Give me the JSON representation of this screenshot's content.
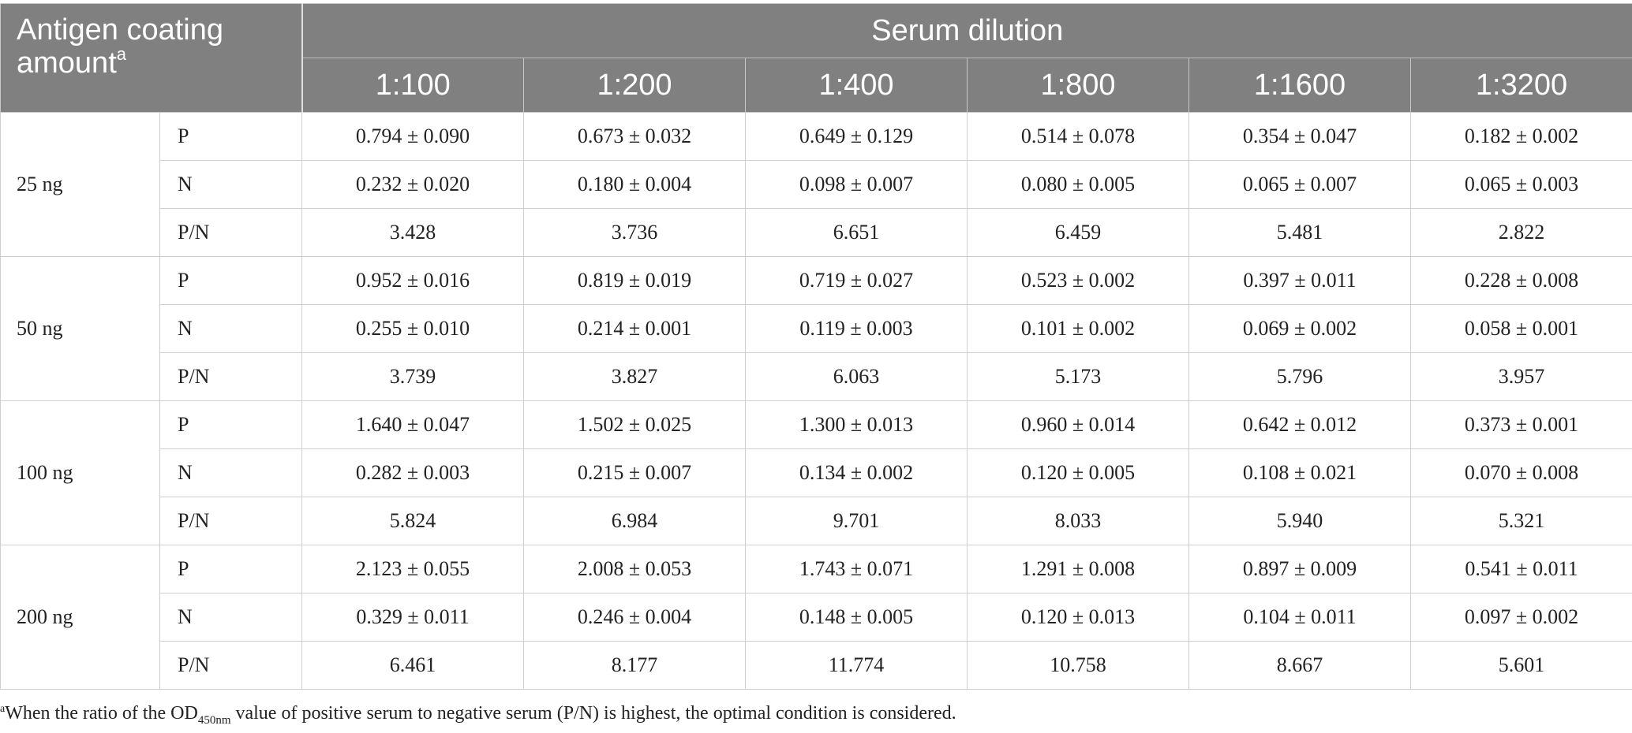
{
  "header": {
    "corner_label": "Antigen coating amount",
    "corner_marker": "a",
    "span_label": "Serum dilution",
    "dilutions": [
      "1:100",
      "1:200",
      "1:400",
      "1:800",
      "1:1600",
      "1:3200"
    ]
  },
  "groups": [
    {
      "amount": "25 ng",
      "rows": [
        {
          "metric": "P",
          "values": [
            "0.794 ± 0.090",
            "0.673 ± 0.032",
            "0.649 ± 0.129",
            "0.514 ± 0.078",
            "0.354 ± 0.047",
            "0.182 ± 0.002"
          ]
        },
        {
          "metric": "N",
          "values": [
            "0.232 ± 0.020",
            "0.180 ± 0.004",
            "0.098 ± 0.007",
            "0.080 ± 0.005",
            "0.065 ± 0.007",
            "0.065 ± 0.003"
          ]
        },
        {
          "metric": "P/N",
          "values": [
            "3.428",
            "3.736",
            "6.651",
            "6.459",
            "5.481",
            "2.822"
          ]
        }
      ]
    },
    {
      "amount": "50 ng",
      "rows": [
        {
          "metric": "P",
          "values": [
            "0.952 ± 0.016",
            "0.819 ± 0.019",
            "0.719 ± 0.027",
            "0.523 ± 0.002",
            "0.397 ± 0.011",
            "0.228 ± 0.008"
          ]
        },
        {
          "metric": "N",
          "values": [
            "0.255 ± 0.010",
            "0.214 ± 0.001",
            "0.119 ± 0.003",
            "0.101 ± 0.002",
            "0.069 ± 0.002",
            "0.058 ± 0.001"
          ]
        },
        {
          "metric": "P/N",
          "values": [
            "3.739",
            "3.827",
            "6.063",
            "5.173",
            "5.796",
            "3.957"
          ]
        }
      ]
    },
    {
      "amount": "100 ng",
      "rows": [
        {
          "metric": "P",
          "values": [
            "1.640 ± 0.047",
            "1.502 ± 0.025",
            "1.300 ± 0.013",
            "0.960 ± 0.014",
            "0.642 ± 0.012",
            "0.373 ± 0.001"
          ]
        },
        {
          "metric": "N",
          "values": [
            "0.282 ± 0.003",
            "0.215 ± 0.007",
            "0.134 ± 0.002",
            "0.120 ± 0.005",
            "0.108 ± 0.021",
            "0.070 ± 0.008"
          ]
        },
        {
          "metric": "P/N",
          "values": [
            "5.824",
            "6.984",
            "9.701",
            "8.033",
            "5.940",
            "5.321"
          ]
        }
      ]
    },
    {
      "amount": "200 ng",
      "rows": [
        {
          "metric": "P",
          "values": [
            "2.123 ± 0.055",
            "2.008 ± 0.053",
            "1.743 ± 0.071",
            "1.291 ± 0.008",
            "0.897 ± 0.009",
            "0.541 ± 0.011"
          ]
        },
        {
          "metric": "N",
          "values": [
            "0.329 ± 0.011",
            "0.246 ± 0.004",
            "0.148 ± 0.005",
            "0.120 ± 0.013",
            "0.104 ± 0.011",
            "0.097 ± 0.002"
          ]
        },
        {
          "metric": "P/N",
          "values": [
            "6.461",
            "8.177",
            "11.774",
            "10.758",
            "8.667",
            "5.601"
          ]
        }
      ]
    }
  ],
  "footnote": {
    "marker": "a",
    "text_before": "When the ratio of the OD",
    "subscript": "450nm",
    "text_after": " value of positive serum to negative serum (P/N) is highest, the optimal condition is considered."
  }
}
